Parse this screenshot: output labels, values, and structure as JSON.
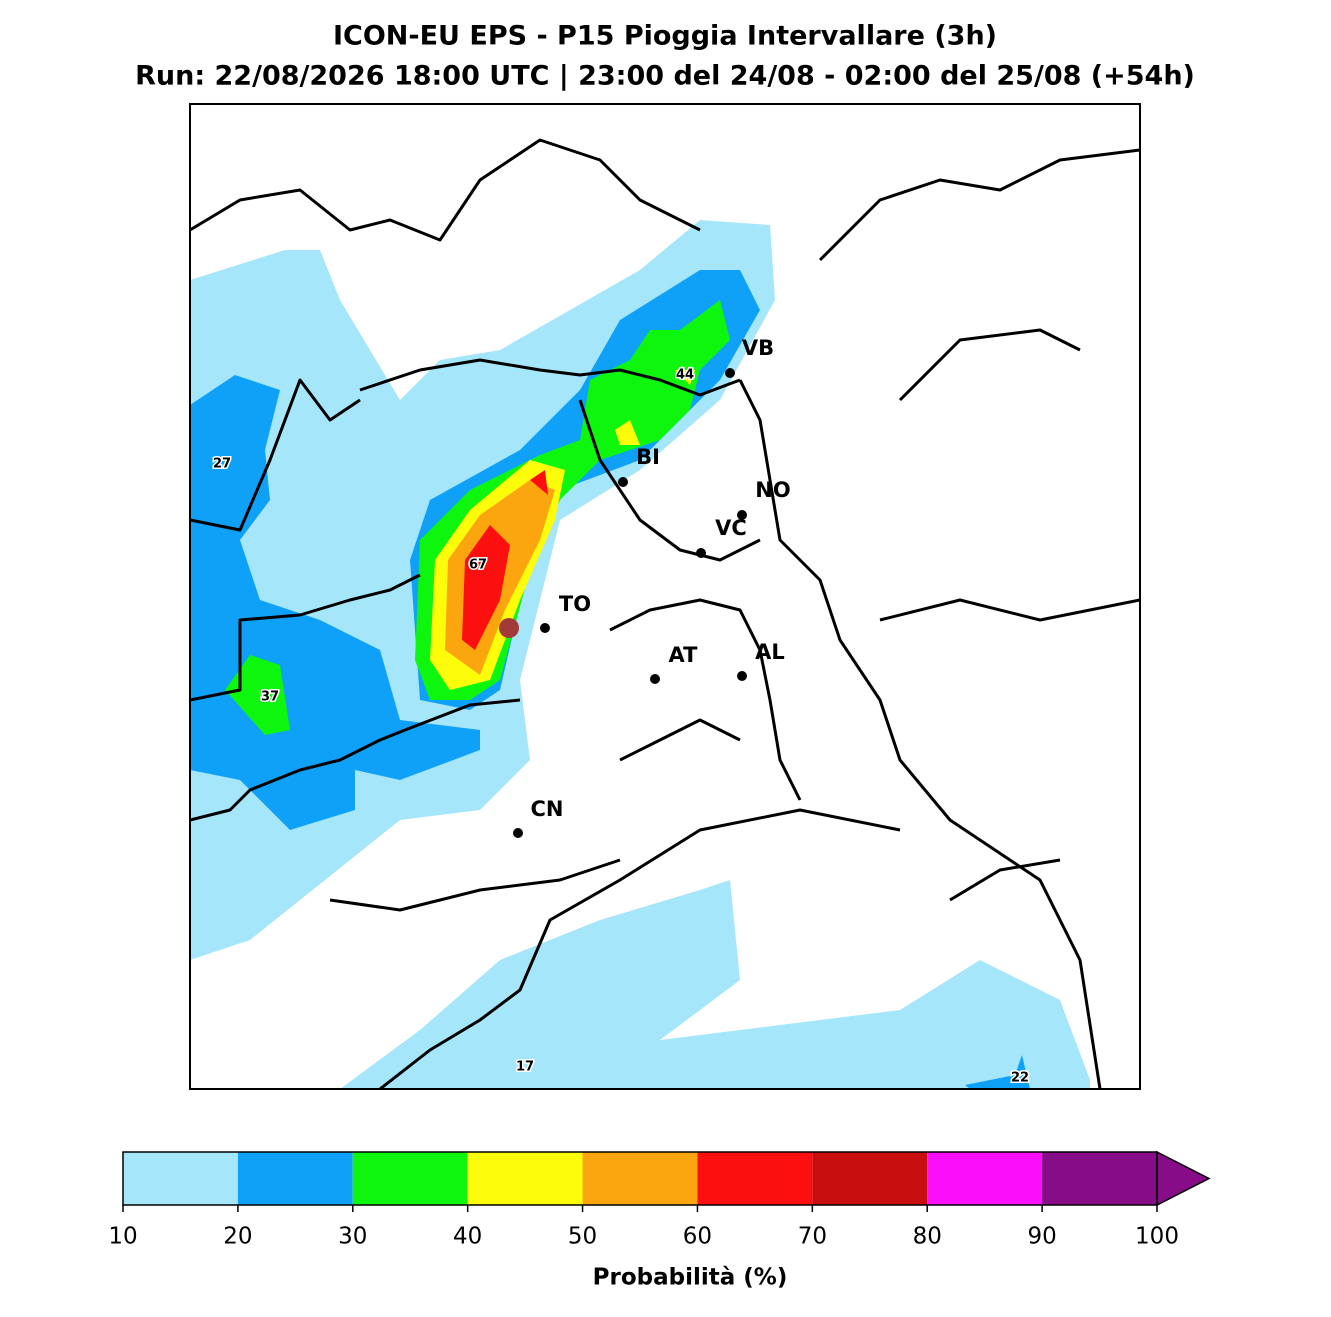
{
  "title": "ICON-EU EPS - P15 Pioggia Intervallare (3h)",
  "subtitle": "Run: 22/08/2026 18:00 UTC | 23:00 del 24/08 - 02:00 del 25/08 (+54h)",
  "cities": [
    "VB",
    "BI",
    "NO",
    "VC",
    "TO",
    "AT",
    "AL",
    "CN"
  ],
  "contour_labels": [
    27,
    44,
    67,
    37,
    17,
    22
  ],
  "colorbar": {
    "label": "Probabilità (%)",
    "ticks": [
      10,
      20,
      30,
      40,
      50,
      60,
      70,
      80,
      90,
      100
    ],
    "colors": [
      "#a6e6fb",
      "#0fa1f8",
      "#0ef50e",
      "#fdfd0b",
      "#fca60f",
      "#fc0f0f",
      "#c80e0e",
      "#fb0ffb",
      "#870c88"
    ]
  }
}
